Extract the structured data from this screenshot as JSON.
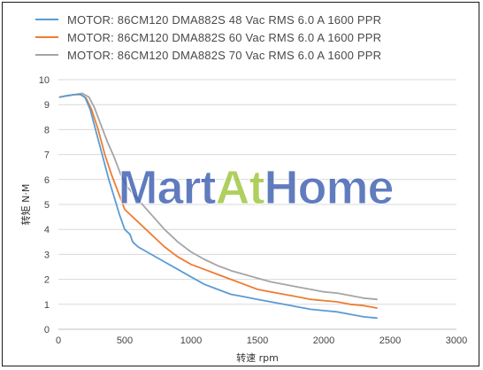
{
  "chart_data": {
    "type": "line",
    "title": "",
    "xlabel": "转速 rpm",
    "ylabel": "转矩 N·M",
    "xlim": [
      0,
      3000
    ],
    "ylim": [
      0,
      10
    ],
    "x_ticks": [
      "0",
      "500",
      "1000",
      "1500",
      "2000",
      "2500",
      "3000"
    ],
    "y_ticks": [
      "0",
      "1",
      "2",
      "3",
      "4",
      "5",
      "6",
      "7",
      "8",
      "9",
      "10"
    ],
    "grid": "horizontal",
    "legend_position": "top",
    "series": [
      {
        "name": "MOTOR: 86CM120  DMA882S 48 Vac  RMS  6.0 A  1600 PPR",
        "color": "#5b9bd5",
        "points": [
          [
            10,
            9.3
          ],
          [
            60,
            9.35
          ],
          [
            120,
            9.4
          ],
          [
            160,
            9.42
          ],
          [
            200,
            9.3
          ],
          [
            240,
            8.8
          ],
          [
            280,
            8.0
          ],
          [
            330,
            7.0
          ],
          [
            380,
            6.0
          ],
          [
            420,
            5.3
          ],
          [
            460,
            4.6
          ],
          [
            500,
            4.0
          ],
          [
            540,
            3.8
          ],
          [
            560,
            3.5
          ],
          [
            600,
            3.3
          ],
          [
            700,
            3.0
          ],
          [
            800,
            2.7
          ],
          [
            900,
            2.4
          ],
          [
            1000,
            2.1
          ],
          [
            1100,
            1.8
          ],
          [
            1200,
            1.6
          ],
          [
            1300,
            1.4
          ],
          [
            1400,
            1.3
          ],
          [
            1500,
            1.2
          ],
          [
            1600,
            1.1
          ],
          [
            1700,
            1.0
          ],
          [
            1800,
            0.9
          ],
          [
            1900,
            0.8
          ],
          [
            2000,
            0.75
          ],
          [
            2100,
            0.7
          ],
          [
            2200,
            0.6
          ],
          [
            2300,
            0.5
          ],
          [
            2400,
            0.45
          ]
        ]
      },
      {
        "name": "MOTOR: 86CM120  DMA882S 60 Vac  RMS  6.0 A  1600 PPR",
        "color": "#ed7d31",
        "points": [
          [
            10,
            9.3
          ],
          [
            60,
            9.35
          ],
          [
            120,
            9.4
          ],
          [
            170,
            9.4
          ],
          [
            210,
            9.25
          ],
          [
            250,
            8.8
          ],
          [
            300,
            8.0
          ],
          [
            350,
            7.0
          ],
          [
            400,
            6.2
          ],
          [
            450,
            5.5
          ],
          [
            500,
            4.8
          ],
          [
            600,
            4.3
          ],
          [
            700,
            3.8
          ],
          [
            800,
            3.3
          ],
          [
            900,
            2.9
          ],
          [
            1000,
            2.6
          ],
          [
            1100,
            2.4
          ],
          [
            1200,
            2.2
          ],
          [
            1300,
            2.0
          ],
          [
            1400,
            1.8
          ],
          [
            1500,
            1.6
          ],
          [
            1600,
            1.5
          ],
          [
            1700,
            1.4
          ],
          [
            1800,
            1.3
          ],
          [
            1900,
            1.2
          ],
          [
            2000,
            1.15
          ],
          [
            2100,
            1.1
          ],
          [
            2200,
            1.0
          ],
          [
            2300,
            0.95
          ],
          [
            2400,
            0.85
          ]
        ]
      },
      {
        "name": "MOTOR: 86CM120  DMA882S 70 Vac  RMS  6.0 A  1600 PPR",
        "color": "#a5a5a5",
        "points": [
          [
            10,
            9.3
          ],
          [
            60,
            9.35
          ],
          [
            120,
            9.4
          ],
          [
            180,
            9.45
          ],
          [
            230,
            9.3
          ],
          [
            270,
            8.9
          ],
          [
            320,
            8.2
          ],
          [
            370,
            7.5
          ],
          [
            420,
            6.9
          ],
          [
            470,
            6.2
          ],
          [
            520,
            5.7
          ],
          [
            600,
            5.2
          ],
          [
            700,
            4.6
          ],
          [
            800,
            4.0
          ],
          [
            900,
            3.5
          ],
          [
            1000,
            3.1
          ],
          [
            1100,
            2.8
          ],
          [
            1200,
            2.55
          ],
          [
            1300,
            2.35
          ],
          [
            1400,
            2.2
          ],
          [
            1500,
            2.05
          ],
          [
            1600,
            1.9
          ],
          [
            1700,
            1.8
          ],
          [
            1800,
            1.7
          ],
          [
            1900,
            1.6
          ],
          [
            2000,
            1.5
          ],
          [
            2100,
            1.45
          ],
          [
            2200,
            1.35
          ],
          [
            2300,
            1.25
          ],
          [
            2400,
            1.2
          ]
        ]
      }
    ]
  },
  "watermark": {
    "parts": [
      "Mart",
      "At",
      "Home"
    ],
    "colors": [
      "#3d5fb0",
      "#9ec53a",
      "#3d5fb0"
    ]
  }
}
